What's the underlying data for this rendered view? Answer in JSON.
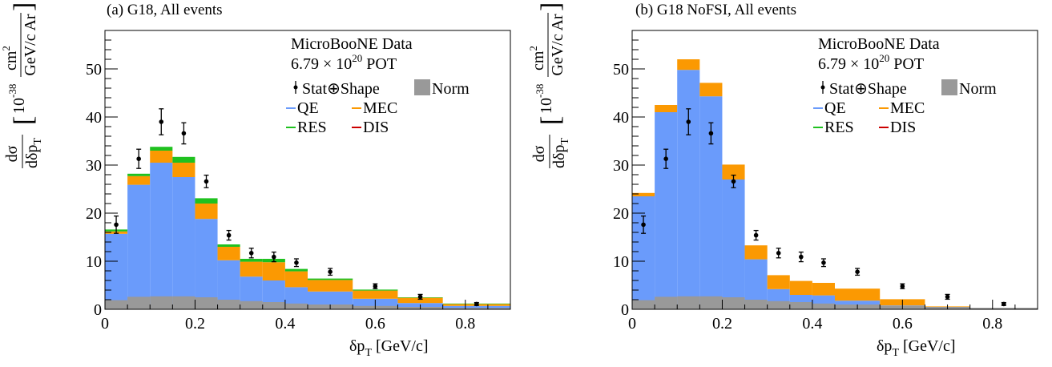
{
  "chart_data": [
    {
      "type": "bar",
      "title": "(a) G18, All events",
      "xlabel": "δp",
      "xlabel_sub": "T",
      "xlabel_unit": " [GeV/c]",
      "ylabel_num": "dσ",
      "ylabel_den": "dδp",
      "ylabel_den_sub": "T",
      "ylabel_scale": "10",
      "ylabel_scale_exp": "-38",
      "ylabel_unit_num": "cm",
      "ylabel_unit_num_exp": "2",
      "ylabel_unit_den": "GeV/c Ar",
      "xlim": [
        0,
        0.9
      ],
      "ylim": [
        0,
        58
      ],
      "xticks": [
        "0",
        "0.2",
        "0.4",
        "0.6",
        "0.8"
      ],
      "yticks": [
        "0",
        "10",
        "20",
        "30",
        "40",
        "50"
      ],
      "legend": {
        "header1": "MicroBooNE Data",
        "header2_prefix": "6.79 × 10",
        "header2_exp": "20",
        "header2_suffix": " POT",
        "data_label": "Stat⊕Shape",
        "norm_label": "Norm",
        "qe": "QE",
        "mec": "MEC",
        "res": "RES",
        "dis": "DIS"
      },
      "bin_edges": [
        0,
        0.05,
        0.1,
        0.15,
        0.2,
        0.25,
        0.3,
        0.35,
        0.4,
        0.45,
        0.55,
        0.65,
        0.75,
        0.9
      ],
      "series": [
        {
          "name": "QE",
          "values": [
            15.7,
            25.9,
            30.5,
            27.5,
            18.8,
            10.2,
            6.8,
            6.0,
            4.6,
            3.7,
            2.2,
            1.3,
            0.7
          ]
        },
        {
          "name": "MEC",
          "values": [
            0.5,
            1.8,
            2.5,
            3.0,
            3.2,
            2.8,
            3.1,
            3.8,
            3.3,
            2.4,
            1.7,
            1.1,
            0.4
          ]
        },
        {
          "name": "RES",
          "values": [
            0.4,
            0.5,
            0.8,
            1.2,
            1.1,
            0.5,
            0.6,
            0.7,
            0.5,
            0.3,
            0.2,
            0.1,
            0.1
          ]
        },
        {
          "name": "DIS",
          "values": [
            0,
            0,
            0,
            0,
            0,
            0,
            0,
            0,
            0,
            0,
            0,
            0,
            0
          ]
        }
      ],
      "norm_band": [
        1.9,
        2.6,
        2.7,
        2.7,
        2.5,
        2.0,
        1.7,
        1.5,
        1.2,
        1.0,
        0.7,
        0.5,
        0.3
      ],
      "data_points": {
        "x": [
          0.025,
          0.075,
          0.125,
          0.175,
          0.225,
          0.275,
          0.325,
          0.375,
          0.425,
          0.5,
          0.6,
          0.7,
          0.825
        ],
        "y": [
          17.6,
          31.3,
          39.0,
          36.6,
          26.6,
          15.4,
          11.7,
          10.9,
          9.7,
          7.8,
          4.8,
          2.6,
          1.1
        ],
        "err": [
          1.8,
          2.0,
          2.7,
          2.2,
          1.3,
          1.0,
          1.0,
          1.0,
          0.8,
          0.7,
          0.5,
          0.5,
          0.3
        ]
      },
      "colors": {
        "QE": "#6a9bfb",
        "MEC": "#fb9902",
        "RES": "#1fc11f",
        "DIS": "#cc0000",
        "norm": "#999999",
        "res_text": "#00b300"
      }
    },
    {
      "type": "bar",
      "title": "(b) G18 NoFSI, All events",
      "xlabel": "δp",
      "xlabel_sub": "T",
      "xlabel_unit": " [GeV/c]",
      "ylabel_num": "dσ",
      "ylabel_den": "dδp",
      "ylabel_den_sub": "T",
      "ylabel_scale": "10",
      "ylabel_scale_exp": "-38",
      "ylabel_unit_num": "cm",
      "ylabel_unit_num_exp": "2",
      "ylabel_unit_den": "GeV/c Ar",
      "xlim": [
        0,
        0.9
      ],
      "ylim": [
        0,
        58
      ],
      "xticks": [
        "0",
        "0.2",
        "0.4",
        "0.6",
        "0.8"
      ],
      "yticks": [
        "0",
        "10",
        "20",
        "30",
        "40",
        "50"
      ],
      "legend": {
        "header1": "MicroBooNE Data",
        "header2_prefix": "6.79 × 10",
        "header2_exp": "20",
        "header2_suffix": " POT",
        "data_label": "Stat⊕Shape",
        "norm_label": "Norm",
        "qe": "QE",
        "mec": "MEC",
        "res": "RES",
        "dis": "DIS"
      },
      "bin_edges": [
        0,
        0.05,
        0.1,
        0.15,
        0.2,
        0.25,
        0.3,
        0.35,
        0.4,
        0.45,
        0.55,
        0.65,
        0.75,
        0.9
      ],
      "series": [
        {
          "name": "QE",
          "values": [
            23.5,
            41.0,
            49.8,
            44.3,
            27.0,
            10.4,
            4.2,
            3.0,
            2.9,
            1.8,
            0.8,
            0.3,
            0.1
          ]
        },
        {
          "name": "MEC",
          "values": [
            0.7,
            1.5,
            2.2,
            2.8,
            3.1,
            2.9,
            2.9,
            2.9,
            2.6,
            2.5,
            1.3,
            0.3,
            0.1
          ]
        },
        {
          "name": "RES",
          "values": [
            0,
            0,
            0,
            0,
            0,
            0,
            0,
            0,
            0,
            0,
            0,
            0,
            0
          ]
        },
        {
          "name": "DIS",
          "values": [
            0,
            0,
            0,
            0,
            0,
            0,
            0,
            0,
            0,
            0,
            0,
            0,
            0
          ]
        }
      ],
      "norm_band": [
        1.9,
        2.6,
        2.7,
        2.7,
        2.5,
        2.0,
        1.7,
        1.5,
        1.2,
        1.0,
        0.7,
        0.5,
        0.3
      ],
      "data_points": {
        "x": [
          0.025,
          0.075,
          0.125,
          0.175,
          0.225,
          0.275,
          0.325,
          0.375,
          0.425,
          0.5,
          0.6,
          0.7,
          0.825
        ],
        "y": [
          17.6,
          31.3,
          39.0,
          36.6,
          26.6,
          15.4,
          11.7,
          10.9,
          9.7,
          7.8,
          4.8,
          2.6,
          1.1
        ],
        "err": [
          1.8,
          2.0,
          2.7,
          2.2,
          1.3,
          1.0,
          1.0,
          1.0,
          0.8,
          0.7,
          0.5,
          0.5,
          0.3
        ]
      },
      "colors": {
        "QE": "#6a9bfb",
        "MEC": "#fb9902",
        "RES": "#1fc11f",
        "DIS": "#cc0000",
        "norm": "#999999",
        "res_text": "#00b300"
      }
    }
  ]
}
